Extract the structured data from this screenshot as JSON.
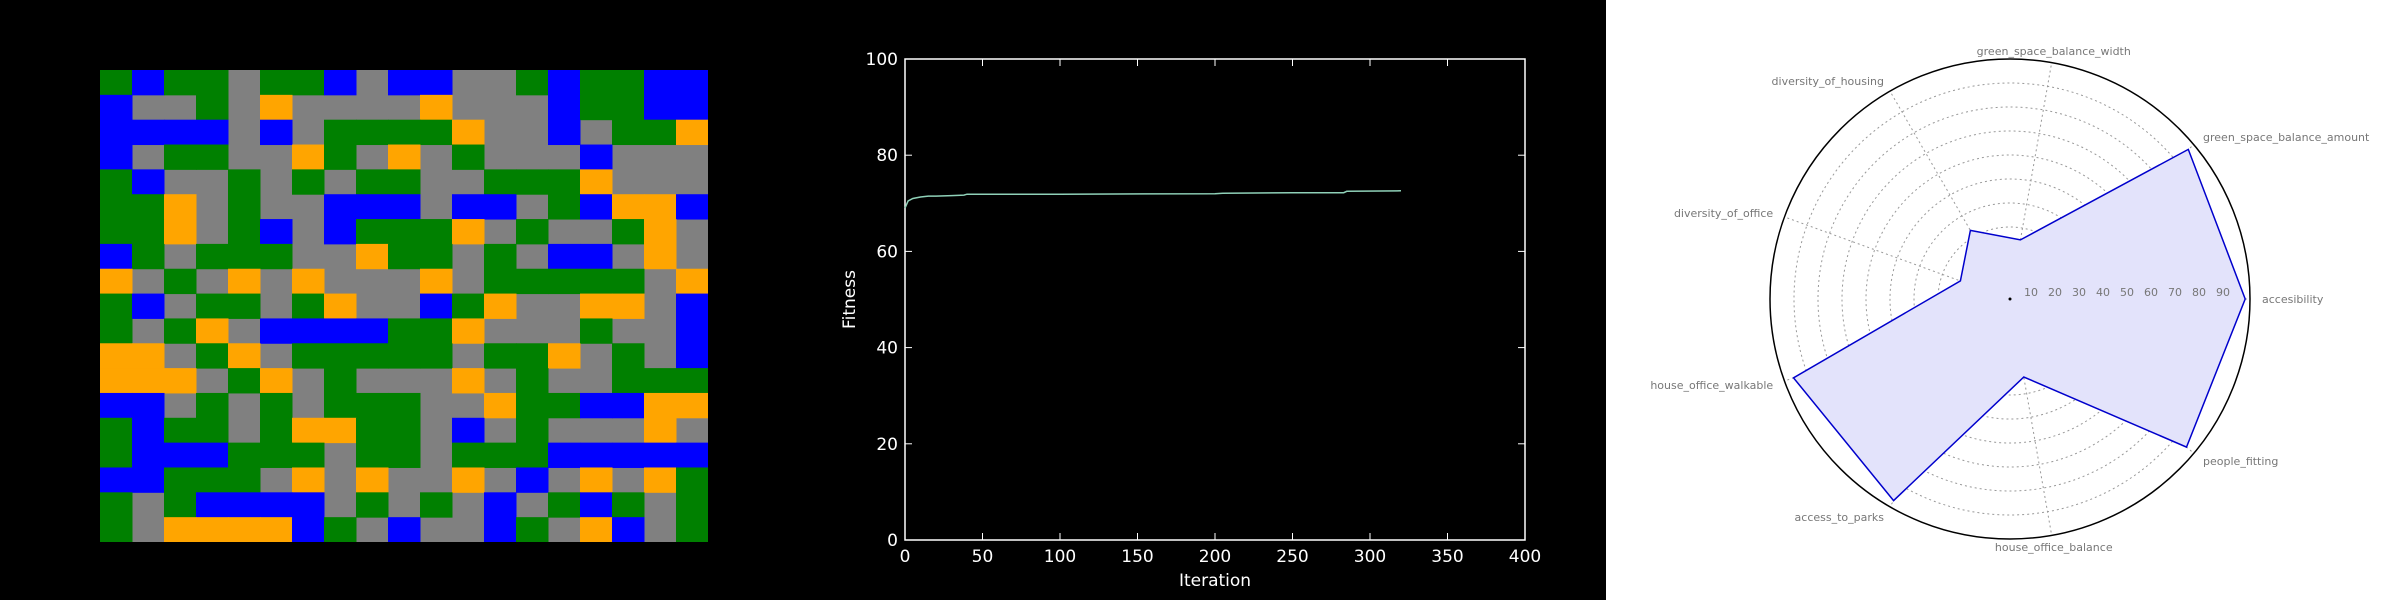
{
  "colors": {
    "background_dark": "#000000",
    "background_light": "#ffffff",
    "road": "#808080",
    "green_space": "#008000",
    "housing": "#0000ff",
    "office": "#ffa500",
    "fitness_line": "#8fd1b8",
    "radar_line": "#0000cc",
    "radar_fill": "#e3e3fb"
  },
  "chart_data": [
    {
      "type": "heatmap",
      "description_colors": "0=road gray, 1=green, 2=blue, 3=orange",
      "rows": [
        "1211011202200121122",
        "2001030000300021122",
        "2222020111130020113",
        "2011003103010002000",
        "1200101011001113000",
        "1130100222022012332",
        "1130120211130100130",
        "2101110031101022030",
        "3010303000301111103",
        "1201101300213003302",
        "1013022221130001002",
        "3301301111101130102",
        "3330130100030100111",
        "2201010111003112233",
        "1211013311020100030",
        "1222111011011122222",
        "2211103030030203031",
        "1012222010102012101",
        "1033332102002103201"
      ]
    },
    {
      "type": "line",
      "xlabel": "Iteration",
      "ylabel": "Fitness",
      "xlim": [
        0,
        400
      ],
      "ylim": [
        0,
        100
      ],
      "xticks": [
        "0",
        "50",
        "100",
        "150",
        "200",
        "250",
        "300",
        "350",
        "400"
      ],
      "yticks": [
        "0",
        "20",
        "40",
        "60",
        "80",
        "100"
      ],
      "series": [
        {
          "x": [
            0,
            2,
            5,
            10,
            15,
            20,
            30,
            38,
            40,
            100,
            200,
            205,
            250,
            283,
            285,
            320
          ],
          "y": [
            69.0,
            70.5,
            71.0,
            71.3,
            71.5,
            71.5,
            71.6,
            71.7,
            71.9,
            71.9,
            72.0,
            72.1,
            72.2,
            72.2,
            72.5,
            72.6
          ]
        }
      ]
    },
    {
      "type": "radar",
      "rmax": 100,
      "ring_labels": [
        "10",
        "20",
        "30",
        "40",
        "50",
        "60",
        "70",
        "80",
        "90"
      ],
      "axes": [
        {
          "label": "accesibility",
          "value": 98
        },
        {
          "label": "green_space_balance_amount",
          "value": 97
        },
        {
          "label": "green_space_balance_width",
          "value": 25
        },
        {
          "label": "diversity_of_housing",
          "value": 33
        },
        {
          "label": "diversity_of_office",
          "value": 22
        },
        {
          "label": "house_office_walkable",
          "value": 96
        },
        {
          "label": "access_to_parks",
          "value": 97
        },
        {
          "label": "house_office_balance",
          "value": 33
        },
        {
          "label": "people_fitting",
          "value": 96
        }
      ]
    }
  ]
}
